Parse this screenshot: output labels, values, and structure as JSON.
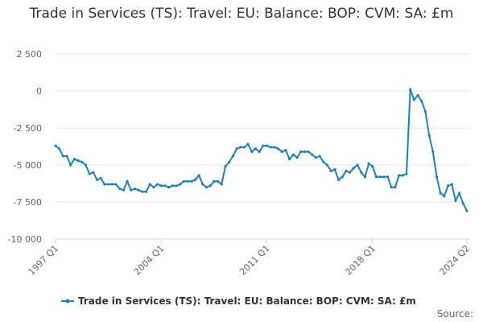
{
  "chart_data": {
    "type": "line",
    "title": "Trade in Services (TS): Travel: EU: Balance: BOP: CVM: SA: £m",
    "categories": [
      "1997 Q1",
      null,
      null,
      null,
      null,
      null,
      null,
      null,
      null,
      null,
      null,
      null,
      null,
      null,
      null,
      null,
      null,
      null,
      null,
      null,
      null,
      null,
      null,
      null,
      null,
      null,
      null,
      null,
      "2004 Q1",
      null,
      null,
      null,
      null,
      null,
      null,
      null,
      null,
      null,
      null,
      null,
      null,
      null,
      null,
      null,
      null,
      null,
      null,
      null,
      null,
      null,
      null,
      null,
      null,
      null,
      null,
      null,
      "2011 Q1",
      null,
      null,
      null,
      null,
      null,
      null,
      null,
      null,
      null,
      null,
      null,
      null,
      null,
      null,
      null,
      null,
      null,
      null,
      null,
      null,
      null,
      null,
      null,
      null,
      null,
      null,
      null,
      "2018 Q1",
      null,
      null,
      null,
      null,
      null,
      null,
      null,
      null,
      null,
      null,
      null,
      null,
      null,
      null,
      null,
      null,
      null,
      null,
      null,
      null,
      null,
      null,
      null,
      null,
      "2024 Q2"
    ],
    "series": [
      {
        "name": "Trade in Services (TS): Travel: EU: Balance: BOP: CVM: SA: £m",
        "color": "#1f7fb8",
        "values": [
          -3700,
          -3900,
          -4400,
          -4400,
          -5000,
          -4600,
          -4700,
          -4800,
          -5000,
          -5600,
          -5500,
          -6000,
          -5900,
          -6300,
          -6300,
          -6300,
          -6300,
          -6600,
          -6700,
          -6100,
          -6700,
          -6600,
          -6700,
          -6800,
          -6800,
          -6300,
          -6500,
          -6300,
          -6400,
          -6400,
          -6500,
          -6400,
          -6400,
          -6300,
          -6100,
          -6100,
          -6100,
          -6000,
          -5700,
          -6300,
          -6500,
          -6400,
          -6100,
          -6100,
          -6300,
          -5100,
          -4800,
          -4400,
          -3900,
          -3800,
          -3800,
          -3600,
          -4100,
          -3900,
          -4100,
          -3700,
          -3700,
          -3800,
          -3800,
          -3900,
          -4100,
          -4000,
          -4600,
          -4300,
          -4500,
          -4100,
          -4100,
          -4100,
          -4300,
          -4500,
          -4400,
          -4800,
          -5000,
          -5400,
          -5300,
          -6000,
          -5800,
          -5400,
          -5500,
          -5200,
          -5000,
          -5500,
          -5800,
          -4900,
          -5100,
          -5800,
          -5800,
          -5800,
          -5800,
          -6500,
          -6500,
          -5700,
          -5700,
          -5600,
          100,
          -600,
          -300,
          -700,
          -1400,
          -3000,
          -4100,
          -5800,
          -6900,
          -7100,
          -6400,
          -6300,
          -7400,
          -6900,
          -7600,
          -8100
        ]
      }
    ],
    "ylim": [
      -10000,
      2500
    ],
    "yticks": [
      {
        "value": -10000,
        "label": "-10 000"
      },
      {
        "value": -7500,
        "label": "-7 500"
      },
      {
        "value": -5000,
        "label": "-5 000"
      },
      {
        "value": -2500,
        "label": "-2 500"
      },
      0,
      {
        "value": 2500,
        "label": "2 500"
      }
    ],
    "grid": true,
    "source": "Source:"
  }
}
